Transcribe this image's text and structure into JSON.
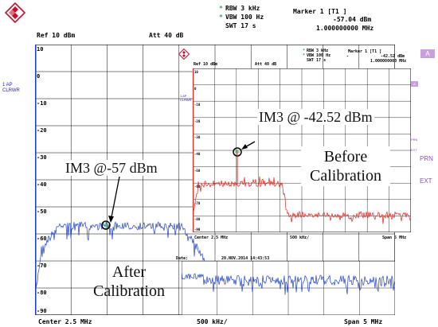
{
  "brand_color": "#c8102e",
  "main": {
    "header": {
      "rbw": "RBW 3 kHz",
      "vbw": "VBW 100 Hz",
      "swt": "SWT 17 s",
      "marker_title": "Marker 1 [T1 ]",
      "marker_level": "-57.04 dBm",
      "marker_freq": "1.000000000 MHz",
      "ref": "Ref  10 dBm",
      "att": "Att  40 dB",
      "star": "*"
    },
    "side": {
      "trace_num": "1 AP",
      "trace_mode": "CLRWR",
      "tag_a": "A",
      "tag_prn": "PRN",
      "tag_ext": "EXT"
    },
    "y_ticks": [
      "10",
      "0",
      "-10",
      "-20",
      "-30",
      "-40",
      "-50",
      "-60",
      "-70",
      "-80",
      "-90"
    ],
    "footer": {
      "center": "Center 2.5 MHz",
      "div": "500 kHz/",
      "span": "Span 5 MHz"
    },
    "annotation": "IM3 @-57 dBm",
    "caption_line1": "After",
    "caption_line2": "Calibration",
    "trace_color": "#1f3fd6"
  },
  "inset": {
    "header": {
      "rbw": "RBW 3 kHz",
      "vbw": "VBW 100 Hz",
      "swt": "SWT 17 s",
      "marker_title": "Marker 1 [T1 ]",
      "marker_level": "-42.52 dBm",
      "marker_freq": "1.000000000 MHz",
      "ref": "Ref  10 dBm",
      "att": "Att  40 dB",
      "dash": "-",
      "star": "*"
    },
    "side": {
      "trace_num": "1 AP",
      "trace_mode": "CLRWR",
      "tag_a": "A",
      "tag_prn": "PRN",
      "tag_ext": "EXT"
    },
    "y_ticks": [
      "10",
      "0",
      "-10",
      "-20",
      "-30",
      "-40",
      "-50",
      "-60",
      "-70",
      "-80",
      "-90"
    ],
    "footer": {
      "center": "Center 2.5 MHz",
      "div": "500 kHz/",
      "span": "Span 5 MHz"
    },
    "annotation": "IM3 @ -42.52 dBm",
    "caption_line1": "Before",
    "caption_line2": "Calibration",
    "trace_color": "#e8231c"
  },
  "overlay_strip": {
    "date_label": "Date:",
    "date_value": "20.NOV.2014  14:43:53"
  }
}
